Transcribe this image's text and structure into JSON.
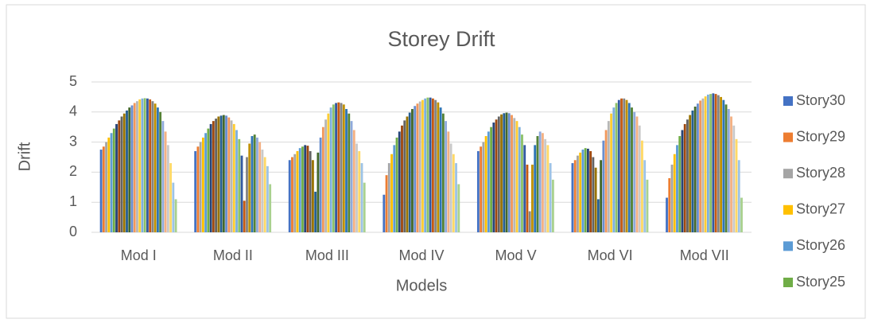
{
  "chart_data": {
    "type": "bar",
    "title": "Storey Drift",
    "x_label": "Models",
    "y_label": "Drift",
    "categories": [
      "Mod I",
      "Mod II",
      "Mod III",
      "Mod IV",
      "Mod V",
      "Mod VI",
      "Mod VII"
    ],
    "ylim": [
      0,
      5
    ],
    "yticks": [
      0,
      1,
      2,
      3,
      4,
      5
    ],
    "grid": true,
    "legend": "right",
    "series": [
      {
        "name": "Story30",
        "color": "#4472C4",
        "values": [
          2.75,
          2.7,
          2.4,
          1.25,
          2.7,
          2.3,
          1.15
        ]
      },
      {
        "name": "Story29",
        "color": "#ED7D31",
        "values": [
          2.85,
          2.85,
          2.5,
          1.9,
          2.85,
          2.4,
          1.8
        ]
      },
      {
        "name": "Story28",
        "color": "#A5A5A5",
        "values": [
          3,
          3,
          2.6,
          2.3,
          3,
          2.55,
          2.25
        ]
      },
      {
        "name": "Story27",
        "color": "#FFC000",
        "values": [
          3.15,
          3.15,
          2.7,
          2.6,
          3.2,
          2.65,
          2.6
        ]
      },
      {
        "name": "Story26",
        "color": "#5B9BD5",
        "values": [
          3.3,
          3.3,
          2.8,
          2.9,
          3.35,
          2.75,
          2.9
        ]
      },
      {
        "name": "Story25",
        "color": "#70AD47",
        "values": [
          3.45,
          3.45,
          2.85,
          3.15,
          3.5,
          2.8,
          3.2
        ]
      },
      {
        "color": "#264478",
        "values": [
          3.6,
          3.6,
          2.9,
          3.35,
          3.65,
          2.78,
          3.4
        ]
      },
      {
        "color": "#9E480E",
        "values": [
          3.72,
          3.7,
          2.88,
          3.55,
          3.75,
          2.7,
          3.6
        ]
      },
      {
        "color": "#636363",
        "values": [
          3.85,
          3.78,
          2.7,
          3.72,
          3.85,
          2.5,
          3.75
        ]
      },
      {
        "color": "#997300",
        "values": [
          3.95,
          3.85,
          2.4,
          3.85,
          3.92,
          2.15,
          3.9
        ]
      },
      {
        "color": "#255E91",
        "values": [
          4.05,
          3.88,
          1.35,
          3.98,
          3.96,
          1.1,
          4.05
        ]
      },
      {
        "color": "#43682B",
        "values": [
          4.15,
          3.9,
          2.65,
          4.1,
          3.98,
          2.4,
          4.18
        ]
      },
      {
        "color": "#698ED0",
        "values": [
          4.22,
          3.88,
          3.15,
          4.2,
          3.96,
          3.05,
          4.28
        ]
      },
      {
        "color": "#F1975A",
        "values": [
          4.3,
          3.82,
          3.5,
          4.28,
          3.9,
          3.4,
          4.38
        ]
      },
      {
        "color": "#B7B7B7",
        "values": [
          4.36,
          3.72,
          3.75,
          4.35,
          3.8,
          3.7,
          4.45
        ]
      },
      {
        "color": "#FFCD33",
        "values": [
          4.42,
          3.6,
          3.95,
          4.4,
          3.7,
          3.95,
          4.52
        ]
      },
      {
        "color": "#7CAFDD",
        "values": [
          4.45,
          3.4,
          4.15,
          4.45,
          3.5,
          4.15,
          4.58
        ]
      },
      {
        "color": "#8CC168",
        "values": [
          4.46,
          3.1,
          4.25,
          4.48,
          3.25,
          4.3,
          4.6
        ]
      },
      {
        "color": "#335AA1",
        "values": [
          4.45,
          2.55,
          4.3,
          4.48,
          2.9,
          4.4,
          4.62
        ]
      },
      {
        "color": "#C55A11",
        "values": [
          4.42,
          1.05,
          4.32,
          4.45,
          2.25,
          4.45,
          4.6
        ]
      },
      {
        "color": "#848484",
        "values": [
          4.36,
          2.5,
          4.3,
          4.4,
          0.7,
          4.45,
          4.56
        ]
      },
      {
        "color": "#BF9000",
        "values": [
          4.28,
          2.95,
          4.25,
          4.32,
          2.25,
          4.4,
          4.5
        ]
      },
      {
        "color": "#2E75B6",
        "values": [
          4.15,
          3.2,
          4.1,
          4.15,
          2.9,
          4.3,
          4.4
        ]
      },
      {
        "color": "#548235",
        "values": [
          4,
          3.25,
          3.95,
          3.95,
          3.2,
          4.15,
          4.25
        ]
      },
      {
        "color": "#8FAADC",
        "values": [
          3.7,
          3.15,
          3.7,
          3.7,
          3.35,
          4,
          4.1
        ]
      },
      {
        "color": "#F4B183",
        "values": [
          3.35,
          3,
          3.4,
          3.35,
          3.3,
          3.85,
          3.85
        ]
      },
      {
        "color": "#C9C9C9",
        "values": [
          2.9,
          2.75,
          2.95,
          2.95,
          3.1,
          3.55,
          3.55
        ]
      },
      {
        "color": "#FFD966",
        "values": [
          2.3,
          2.5,
          2.7,
          2.6,
          2.9,
          3.05,
          3.1
        ]
      },
      {
        "color": "#9DC3E6",
        "values": [
          1.65,
          2.2,
          2.3,
          2.3,
          2.3,
          2.4,
          2.4
        ]
      },
      {
        "color": "#A9D18E",
        "values": [
          1.1,
          1.6,
          1.65,
          1.6,
          1.75,
          1.75,
          1.15
        ]
      }
    ]
  }
}
